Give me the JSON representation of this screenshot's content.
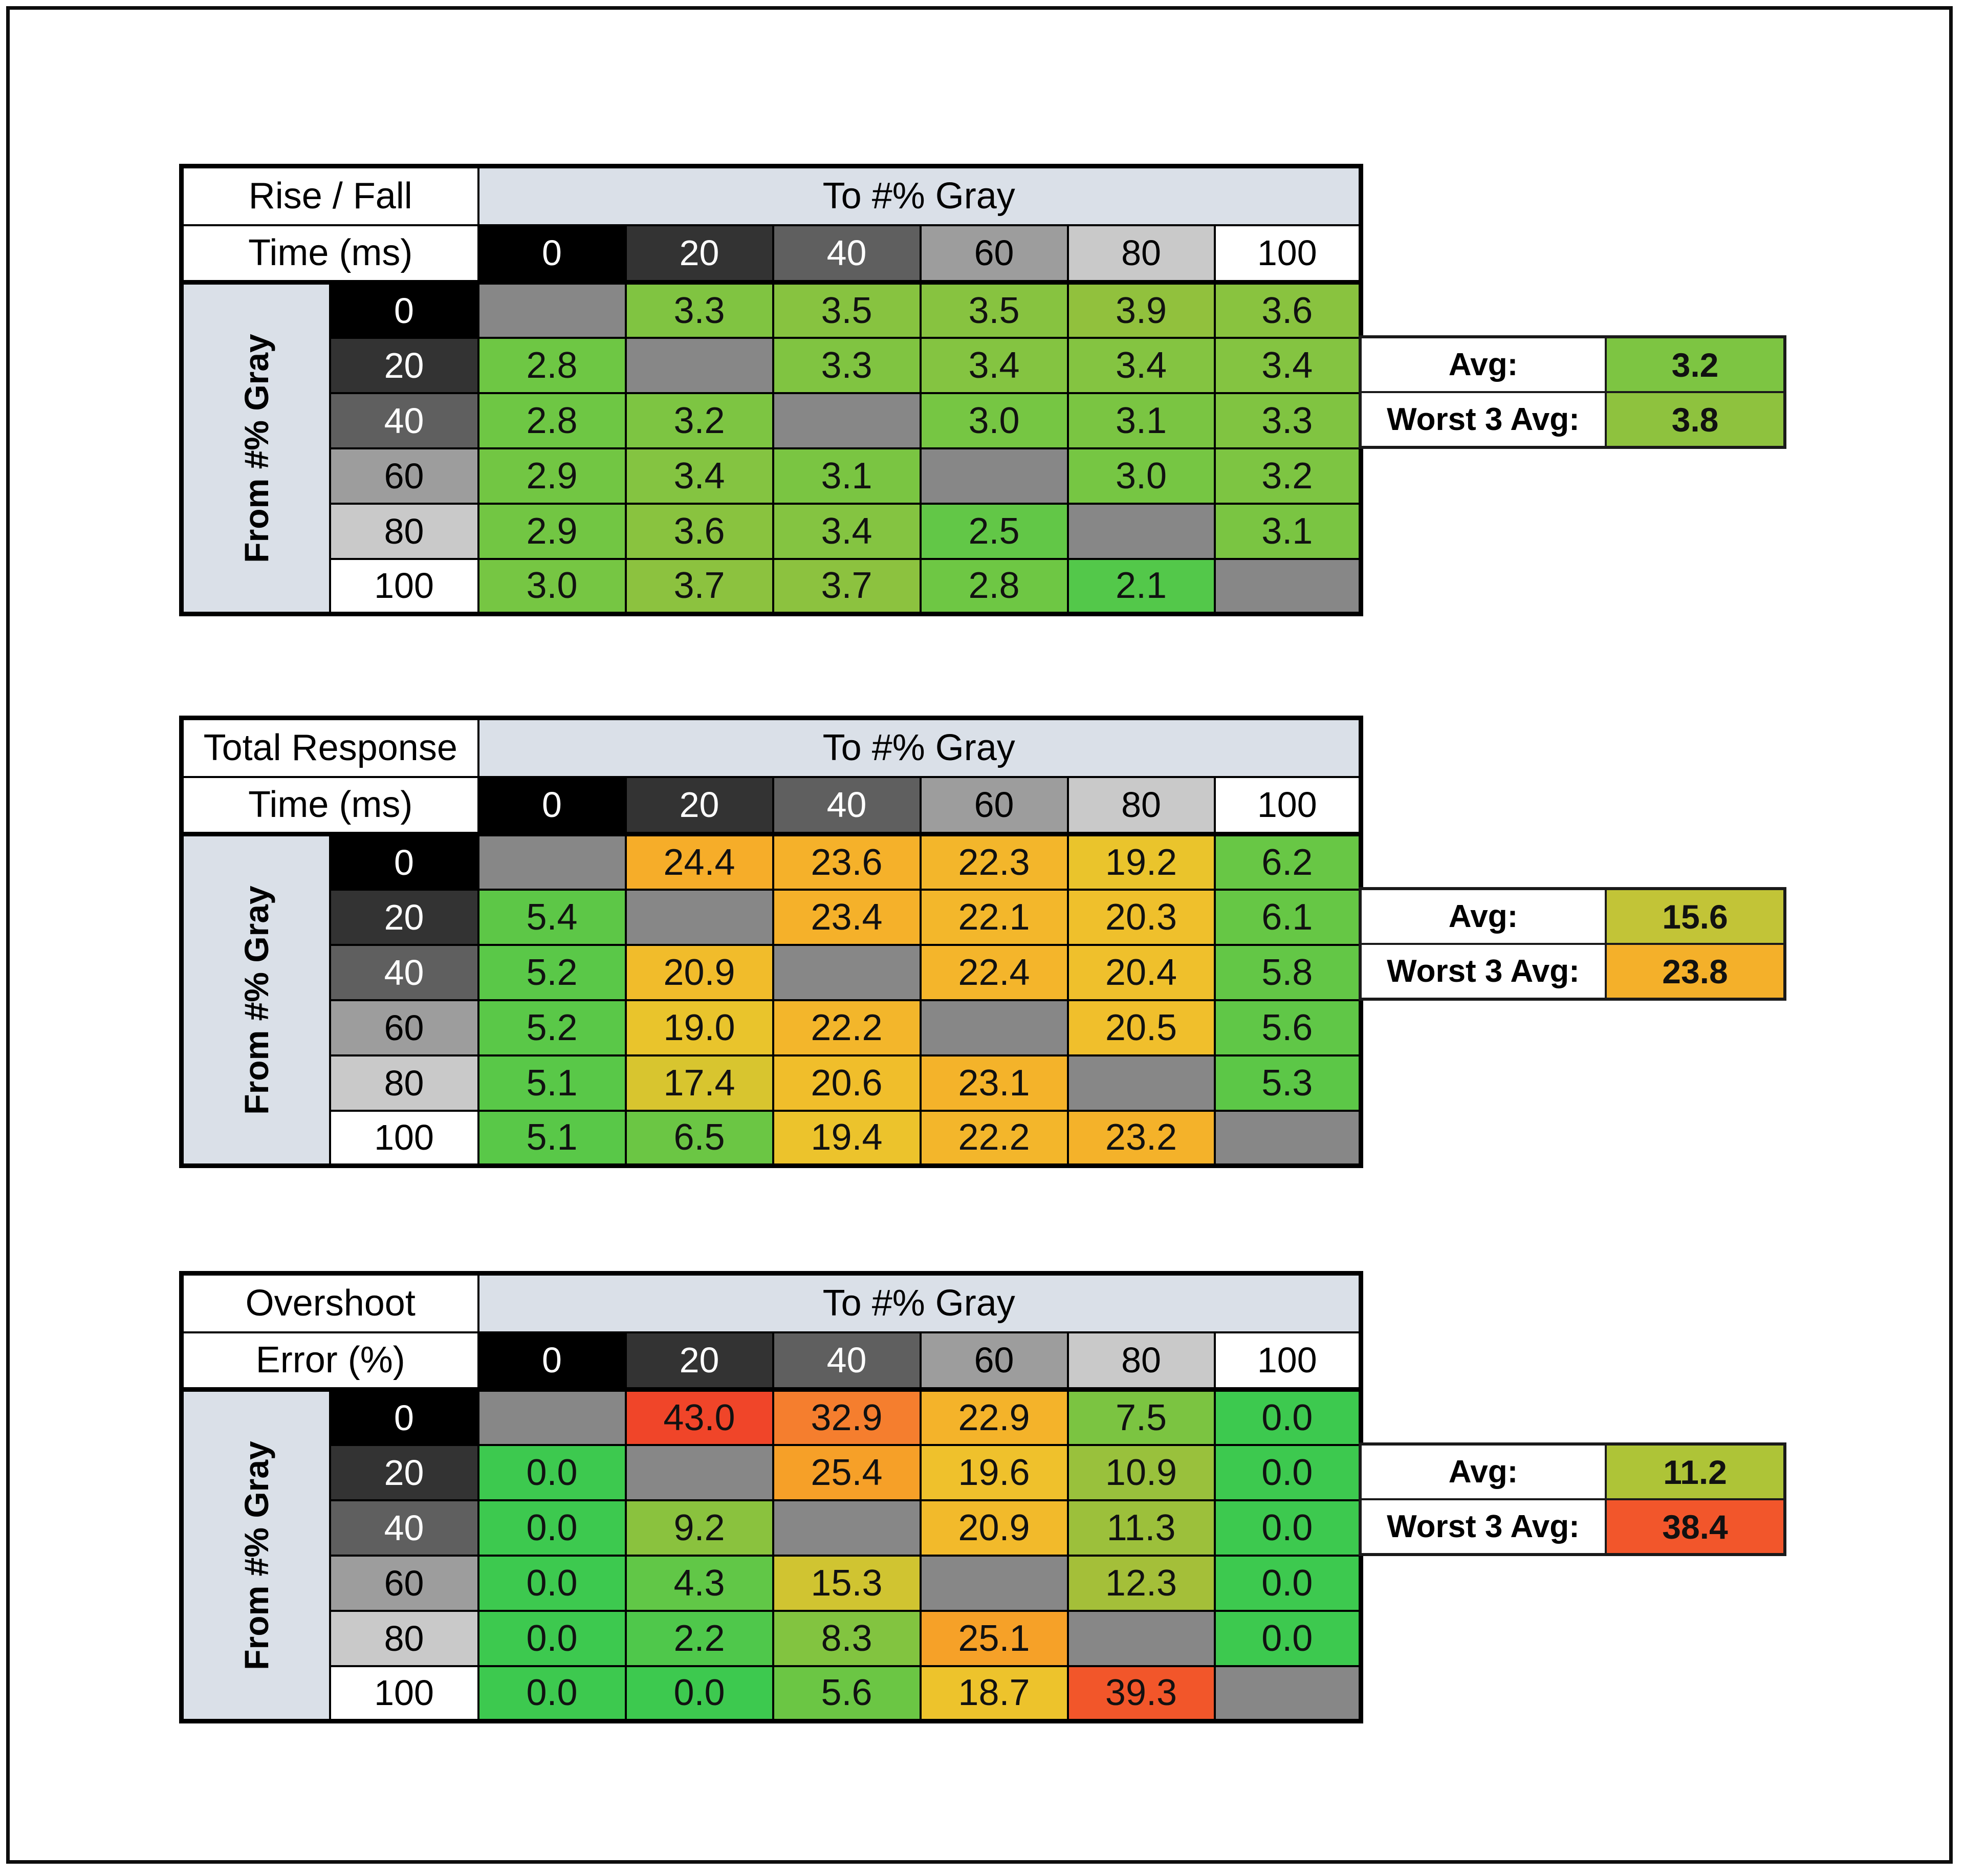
{
  "page": {
    "background": "#ffffff",
    "frame_color": "#0d0d0d"
  },
  "shared": {
    "col_header_title": "To #% Gray",
    "row_header_title": "From #% Gray",
    "gray_scale_bg": [
      "#000000",
      "#333333",
      "#5f5f5f",
      "#9d9d9d",
      "#c9c9c9",
      "#ffffff"
    ],
    "gray_scale_text": [
      "#ffffff",
      "#ffffff",
      "#ffffff",
      "#000000",
      "#000000",
      "#000000"
    ],
    "diagonal_color": "#878787",
    "header_blue": "#dae0e8"
  },
  "tables": [
    {
      "id": "rise-fall",
      "title_line1": "Rise / Fall",
      "title_line2": "Time (ms)",
      "col_labels": [
        "0",
        "20",
        "40",
        "60",
        "80",
        "100"
      ],
      "row_labels": [
        "0",
        "20",
        "40",
        "60",
        "80",
        "100"
      ],
      "cells": [
        [
          null,
          {
            "v": "3.3",
            "c": "#80c441"
          },
          {
            "v": "3.5",
            "c": "#87c340"
          },
          {
            "v": "3.5",
            "c": "#87c340"
          },
          {
            "v": "3.9",
            "c": "#91c13d"
          },
          {
            "v": "3.6",
            "c": "#89c33f"
          }
        ],
        [
          {
            "v": "2.8",
            "c": "#6ec744"
          },
          null,
          {
            "v": "3.3",
            "c": "#80c441"
          },
          {
            "v": "3.4",
            "c": "#84c441"
          },
          {
            "v": "3.4",
            "c": "#84c441"
          },
          {
            "v": "3.4",
            "c": "#84c441"
          }
        ],
        [
          {
            "v": "2.8",
            "c": "#6ec744"
          },
          {
            "v": "3.2",
            "c": "#7dc542"
          },
          null,
          {
            "v": "3.0",
            "c": "#76c643"
          },
          {
            "v": "3.1",
            "c": "#7ac542"
          },
          {
            "v": "3.3",
            "c": "#80c441"
          }
        ],
        [
          {
            "v": "2.9",
            "c": "#72c643"
          },
          {
            "v": "3.4",
            "c": "#84c441"
          },
          {
            "v": "3.1",
            "c": "#7ac542"
          },
          null,
          {
            "v": "3.0",
            "c": "#76c643"
          },
          {
            "v": "3.2",
            "c": "#7dc542"
          }
        ],
        [
          {
            "v": "2.9",
            "c": "#72c643"
          },
          {
            "v": "3.6",
            "c": "#89c33f"
          },
          {
            "v": "3.4",
            "c": "#84c441"
          },
          {
            "v": "2.5",
            "c": "#62c747"
          },
          null,
          {
            "v": "3.1",
            "c": "#7ac542"
          }
        ],
        [
          {
            "v": "3.0",
            "c": "#76c643"
          },
          {
            "v": "3.7",
            "c": "#8cc23f"
          },
          {
            "v": "3.7",
            "c": "#8cc23f"
          },
          {
            "v": "2.8",
            "c": "#6ec744"
          },
          {
            "v": "2.1",
            "c": "#53c84a"
          },
          null
        ]
      ],
      "avg": {
        "label": "Avg:",
        "value": "3.2",
        "color": "#7dc542"
      },
      "worst": {
        "label": "Worst 3 Avg:",
        "value": "3.8",
        "color": "#8ec23e"
      }
    },
    {
      "id": "total-response",
      "title_line1": "Total Response",
      "title_line2": "Time (ms)",
      "col_labels": [
        "0",
        "20",
        "40",
        "60",
        "80",
        "100"
      ],
      "row_labels": [
        "0",
        "20",
        "40",
        "60",
        "80",
        "100"
      ],
      "cells": [
        [
          null,
          {
            "v": "24.4",
            "c": "#f6ad29"
          },
          {
            "v": "23.6",
            "c": "#f5b12a"
          },
          {
            "v": "22.3",
            "c": "#f3b62b"
          },
          {
            "v": "19.2",
            "c": "#eac42c"
          },
          {
            "v": "6.2",
            "c": "#68c745"
          }
        ],
        [
          {
            "v": "5.4",
            "c": "#5dc747"
          },
          null,
          {
            "v": "23.4",
            "c": "#f5b12a"
          },
          {
            "v": "22.1",
            "c": "#f3b72b"
          },
          {
            "v": "20.3",
            "c": "#efc02c"
          },
          {
            "v": "6.1",
            "c": "#66c745"
          }
        ],
        [
          {
            "v": "5.2",
            "c": "#5ac848"
          },
          {
            "v": "20.9",
            "c": "#f1bc2b"
          },
          null,
          {
            "v": "22.4",
            "c": "#f4b52b"
          },
          {
            "v": "20.4",
            "c": "#efc02c"
          },
          {
            "v": "5.8",
            "c": "#63c746"
          }
        ],
        [
          {
            "v": "5.2",
            "c": "#5ac848"
          },
          {
            "v": "19.0",
            "c": "#e9c42c"
          },
          {
            "v": "22.2",
            "c": "#f3b62b"
          },
          null,
          {
            "v": "20.5",
            "c": "#f0bf2c"
          },
          {
            "v": "5.6",
            "c": "#60c747"
          }
        ],
        [
          {
            "v": "5.1",
            "c": "#59c848"
          },
          {
            "v": "17.4",
            "c": "#d8c52f"
          },
          {
            "v": "20.6",
            "c": "#f0be2b"
          },
          {
            "v": "23.1",
            "c": "#f4b32a"
          },
          null,
          {
            "v": "5.3",
            "c": "#5cc747"
          }
        ],
        [
          {
            "v": "5.1",
            "c": "#59c848"
          },
          {
            "v": "6.5",
            "c": "#6bc644"
          },
          {
            "v": "19.4",
            "c": "#ecc32c"
          },
          {
            "v": "22.2",
            "c": "#f3b62b"
          },
          {
            "v": "23.2",
            "c": "#f4b22a"
          },
          null
        ]
      ],
      "avg": {
        "label": "Avg:",
        "value": "15.6",
        "color": "#c2c437"
      },
      "worst": {
        "label": "Worst 3 Avg:",
        "value": "23.8",
        "color": "#f4b02a"
      }
    },
    {
      "id": "overshoot",
      "title_line1": "Overshoot",
      "title_line2": "Error (%)",
      "col_labels": [
        "0",
        "20",
        "40",
        "60",
        "80",
        "100"
      ],
      "row_labels": [
        "0",
        "20",
        "40",
        "60",
        "80",
        "100"
      ],
      "cells": [
        [
          null,
          {
            "v": "43.0",
            "c": "#f04529"
          },
          {
            "v": "32.9",
            "c": "#f57e2e"
          },
          {
            "v": "22.9",
            "c": "#f4b32a"
          },
          {
            "v": "7.5",
            "c": "#7bc441"
          },
          {
            "v": "0.0",
            "c": "#3dc94f"
          }
        ],
        [
          {
            "v": "0.0",
            "c": "#3dc94f"
          },
          null,
          {
            "v": "25.4",
            "c": "#f6a028"
          },
          {
            "v": "19.6",
            "c": "#efc12c"
          },
          {
            "v": "10.9",
            "c": "#99c13c"
          },
          {
            "v": "0.0",
            "c": "#3dc94f"
          }
        ],
        [
          {
            "v": "0.0",
            "c": "#3dc94f"
          },
          {
            "v": "9.2",
            "c": "#8ac23e"
          },
          null,
          {
            "v": "20.9",
            "c": "#f2ba2b"
          },
          {
            "v": "11.3",
            "c": "#9cc03b"
          },
          {
            "v": "0.0",
            "c": "#3dc94f"
          }
        ],
        [
          {
            "v": "0.0",
            "c": "#3dc94f"
          },
          {
            "v": "4.3",
            "c": "#61c747"
          },
          {
            "v": "15.3",
            "c": "#d0c431"
          },
          null,
          {
            "v": "12.3",
            "c": "#a4bf39"
          },
          {
            "v": "0.0",
            "c": "#3dc94f"
          }
        ],
        [
          {
            "v": "0.0",
            "c": "#3dc94f"
          },
          {
            "v": "2.2",
            "c": "#4fc84b"
          },
          {
            "v": "8.3",
            "c": "#82c440"
          },
          {
            "v": "25.1",
            "c": "#f6a128"
          },
          null,
          {
            "v": "0.0",
            "c": "#3dc94f"
          }
        ],
        [
          {
            "v": "0.0",
            "c": "#3dc94f"
          },
          {
            "v": "0.0",
            "c": "#3dc94f"
          },
          {
            "v": "5.6",
            "c": "#6bc644"
          },
          {
            "v": "18.7",
            "c": "#edc32c"
          },
          {
            "v": "39.3",
            "c": "#f2562a"
          },
          null
        ]
      ],
      "avg": {
        "label": "Avg:",
        "value": "11.2",
        "color": "#aec437"
      },
      "worst": {
        "label": "Worst 3 Avg:",
        "value": "38.4",
        "color": "#f2562b"
      }
    }
  ],
  "chart_data": [
    {
      "type": "heatmap",
      "title": "Rise / Fall Time (ms)",
      "xlabel": "To #% Gray",
      "ylabel": "From #% Gray",
      "x": [
        0,
        20,
        40,
        60,
        80,
        100
      ],
      "y": [
        0,
        20,
        40,
        60,
        80,
        100
      ],
      "values": [
        [
          null,
          3.3,
          3.5,
          3.5,
          3.9,
          3.6
        ],
        [
          2.8,
          null,
          3.3,
          3.4,
          3.4,
          3.4
        ],
        [
          2.8,
          3.2,
          null,
          3.0,
          3.1,
          3.3
        ],
        [
          2.9,
          3.4,
          3.1,
          null,
          3.0,
          3.2
        ],
        [
          2.9,
          3.6,
          3.4,
          2.5,
          null,
          3.1
        ],
        [
          3.0,
          3.7,
          3.7,
          2.8,
          2.1,
          null
        ]
      ],
      "avg": 3.2,
      "worst3_avg": 3.8
    },
    {
      "type": "heatmap",
      "title": "Total Response Time (ms)",
      "xlabel": "To #% Gray",
      "ylabel": "From #% Gray",
      "x": [
        0,
        20,
        40,
        60,
        80,
        100
      ],
      "y": [
        0,
        20,
        40,
        60,
        80,
        100
      ],
      "values": [
        [
          null,
          24.4,
          23.6,
          22.3,
          19.2,
          6.2
        ],
        [
          5.4,
          null,
          23.4,
          22.1,
          20.3,
          6.1
        ],
        [
          5.2,
          20.9,
          null,
          22.4,
          20.4,
          5.8
        ],
        [
          5.2,
          19.0,
          22.2,
          null,
          20.5,
          5.6
        ],
        [
          5.1,
          17.4,
          20.6,
          23.1,
          null,
          5.3
        ],
        [
          5.1,
          6.5,
          19.4,
          22.2,
          23.2,
          null
        ]
      ],
      "avg": 15.6,
      "worst3_avg": 23.8
    },
    {
      "type": "heatmap",
      "title": "Overshoot Error (%)",
      "xlabel": "To #% Gray",
      "ylabel": "From #% Gray",
      "x": [
        0,
        20,
        40,
        60,
        80,
        100
      ],
      "y": [
        0,
        20,
        40,
        60,
        80,
        100
      ],
      "values": [
        [
          null,
          43.0,
          32.9,
          22.9,
          7.5,
          0.0
        ],
        [
          0.0,
          null,
          25.4,
          19.6,
          10.9,
          0.0
        ],
        [
          0.0,
          9.2,
          null,
          20.9,
          11.3,
          0.0
        ],
        [
          0.0,
          4.3,
          15.3,
          null,
          12.3,
          0.0
        ],
        [
          0.0,
          2.2,
          8.3,
          25.1,
          null,
          0.0
        ],
        [
          0.0,
          0.0,
          5.6,
          18.7,
          39.3,
          null
        ]
      ],
      "avg": 11.2,
      "worst3_avg": 38.4
    }
  ]
}
